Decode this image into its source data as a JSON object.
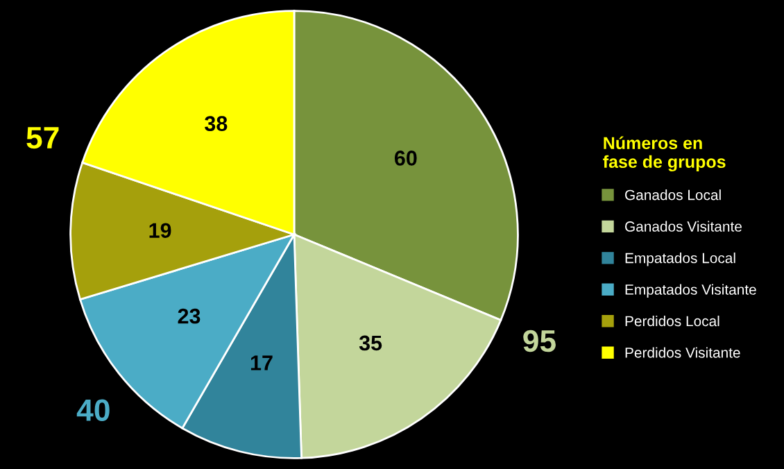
{
  "chart_data": {
    "type": "pie",
    "legend_title": "Números en\nfase de grupos",
    "legend": "right",
    "categories": [
      "Ganados Local",
      "Ganados Visitante",
      "Empatados Local",
      "Empatados Visitante",
      "Perdidos Local",
      "Perdidos Visitante"
    ],
    "values": [
      60,
      35,
      17,
      23,
      19,
      38
    ],
    "colors": [
      "#77933c",
      "#c3d69b",
      "#31849b",
      "#4bacc6",
      "#a5a00c",
      "#ffff00"
    ],
    "data_labels": true,
    "annotations": [
      "95",
      "40",
      "57"
    ]
  }
}
